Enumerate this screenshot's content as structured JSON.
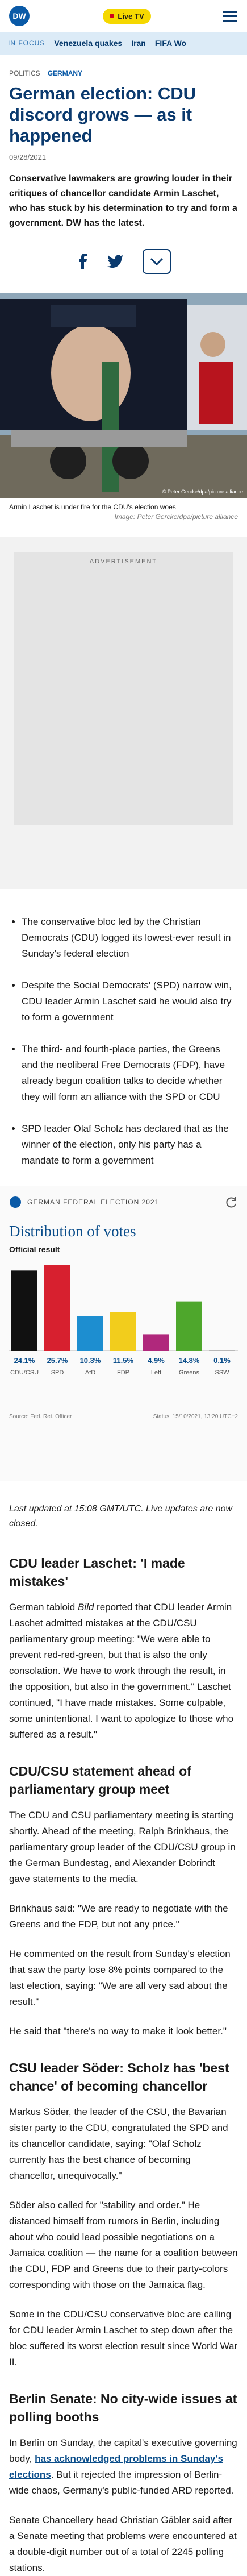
{
  "header": {
    "logo": "DW",
    "live_button": "Live TV"
  },
  "nav": {
    "label": "IN FOCUS",
    "items": [
      "Venezuela quakes",
      "Iran",
      "FIFA Wo"
    ]
  },
  "article": {
    "breadcrumb": [
      "POLITICS",
      "GERMANY"
    ],
    "title": "German election: CDU discord grows — as it happened",
    "date": "09/28/2021",
    "lead": "Conservative lawmakers are growing louder in their critiques of chancellor candidate Armin Laschet, who has stuck by his determination to try and form a government. DW has the latest.",
    "image": {
      "overlay_credit": "© Peter Gercke/dpa/picture alliance",
      "caption": "Armin Laschet is under fire for the CDU's election woes",
      "credit": "Image: Peter Gercke/dpa/picture alliance"
    },
    "advertisement": "ADVERTISEMENT",
    "bullets": [
      "The conservative bloc led by the Christian Democrats (CDU) logged its lowest-ever result in Sunday's federal election",
      "Despite the Social Democrats' (SPD) narrow win, CDU leader Armin Laschet said he would also try to form a government",
      "The third- and fourth-place parties, the Greens and the neoliberal Free Democrats (FDP), have already begun coalition talks to decide whether they will form an alliance with the SPD or CDU",
      "SPD leader Olaf Scholz has declared that as the winner of the election, only his party has a mandate to form a government"
    ],
    "updated": "Last updated at 15:08 GMT/UTC. Live updates are now closed.",
    "sections": [
      {
        "heading": "CDU leader Laschet: 'I made mistakes'",
        "paragraphs": [
          [
            {
              "text": "German tabloid "
            },
            {
              "text": "Bild",
              "style": "italic"
            },
            {
              "text": " reported that CDU leader Armin Laschet admitted mistakes at the CDU/CSU parliamentary group meeting: \"We were able to prevent red-red-green, but that is also the only consolation. We have to work through the result, in the opposition, but also in the government.\" Laschet continued, \"I have made mistakes. Some culpable, some unintentional. I want to apologize to those who suffered as a result.\""
            }
          ]
        ]
      },
      {
        "heading": "CDU/CSU statement ahead of parliamentary group meet",
        "paragraphs": [
          [
            {
              "text": "The CDU and CSU parliamentary meeting is starting shortly. Ahead of the meeting, Ralph Brinkhaus, the parliamentary group leader of the CDU/CSU group in the German Bundestag, and Alexander Dobrindt gave statements to the media."
            }
          ],
          [
            {
              "text": "Brinkhaus said: \"We are ready to negotiate with the Greens and the FDP, but not any price.\""
            }
          ],
          [
            {
              "text": "He commented on the result from Sunday's election that saw the party lose 8% points compared to the last election, saying: \"We are all very sad about the result.\""
            }
          ],
          [
            {
              "text": "He said that \"there's no way to make it look better.\""
            }
          ]
        ]
      },
      {
        "heading": "CSU leader Söder: Scholz has 'best chance' of becoming chancellor",
        "paragraphs": [
          [
            {
              "text": "Markus Söder, the leader of the CSU, the Bavarian sister party to the CDU, congratulated the SPD and its chancellor candidate, saying: \"Olaf Scholz currently has the best chance of becoming chancellor, unequivocally.\""
            }
          ],
          [
            {
              "text": "Söder also called for \"stability and order.\" He distanced himself from rumors in Berlin, including about who could lead possible negotiations on a Jamaica coalition — the name for a coalition between the CDU, FDP and Greens due to their party-colors corresponding with those on the Jamaica flag."
            }
          ],
          [
            {
              "text": "Some in the CDU/CSU conservative bloc are calling for CDU leader Armin Laschet to step down after the bloc suffered its worst election result since World War II."
            }
          ]
        ]
      },
      {
        "heading": "Berlin Senate: No city-wide issues at polling booths",
        "paragraphs": [
          [
            {
              "text": "In Berlin on Sunday, the capital's executive governing body, "
            },
            {
              "text": "has acknowledged problems in Sunday's elections",
              "style": "link"
            },
            {
              "text": ". But it rejected the impression of Berlin-wide chaos, Germany's public-funded ARD reported."
            }
          ],
          [
            {
              "text": "Senate Chancellery head Christian Gäbler said after a Senate meeting that problems were encountered at a double-digit number out of a total of 2245 polling stations."
            }
          ]
        ]
      }
    ]
  },
  "chart_data": {
    "type": "bar",
    "kicker": "GERMAN FEDERAL ELECTION 2021",
    "title": "Distribution of votes",
    "subtitle": "Official result",
    "categories": [
      "CDU/CSU",
      "SPD",
      "AfD",
      "FDP",
      "Left",
      "Greens",
      "SSW"
    ],
    "values": [
      24.1,
      25.7,
      10.3,
      11.5,
      4.9,
      14.8,
      0.1
    ],
    "value_labels": [
      "24.1%",
      "25.7%",
      "10.3%",
      "11.5%",
      "4.9%",
      "14.8%",
      "0.1%"
    ],
    "colors": [
      "#111111",
      "#d7202f",
      "#1d8ed0",
      "#f2cd1c",
      "#b0287c",
      "#4ea72c",
      "#8a8a8a"
    ],
    "source": "Source: Fed. Ret. Officer",
    "status": "Status: 15/10/2021, 13:20 UTC+2"
  }
}
